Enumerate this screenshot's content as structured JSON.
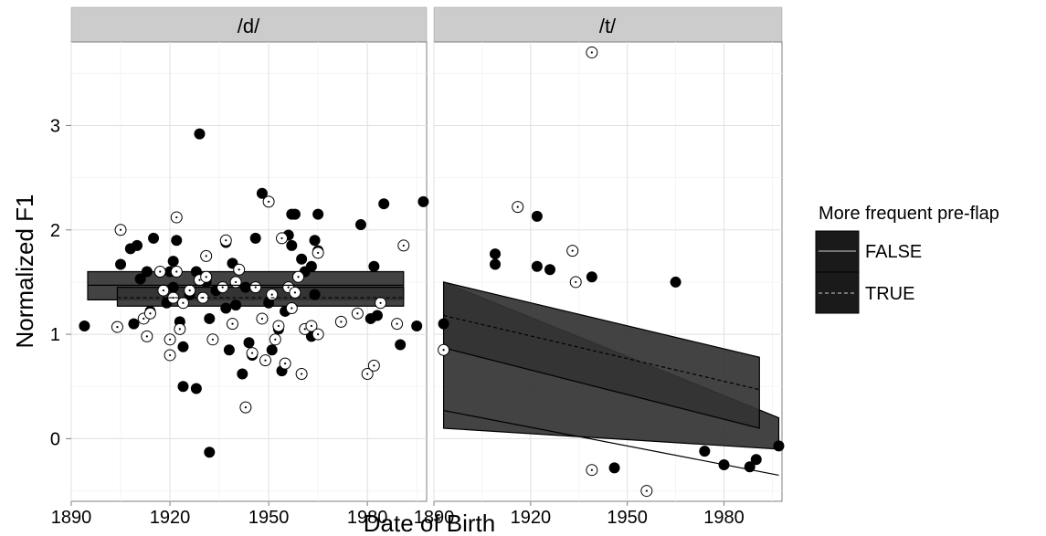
{
  "chart_data": {
    "type": "scatter",
    "facets": [
      "/d/",
      "/t/"
    ],
    "xlabel": "Date of Birth",
    "ylabel": "Normalized F1",
    "xlim": [
      1890,
      1998
    ],
    "ylim": [
      3.8,
      -0.6
    ],
    "y_reversed": true,
    "x_ticks": [
      1890,
      1920,
      1950,
      1980
    ],
    "y_ticks": [
      0,
      1,
      2,
      3
    ],
    "legend": {
      "title": "More frequent pre-flap",
      "placement": "right",
      "entries": [
        {
          "label": "FALSE",
          "line": "solid",
          "marker": "filled-circle"
        },
        {
          "label": "TRUE",
          "line": "dashed",
          "marker": "open-circle-dot"
        }
      ]
    },
    "panels": [
      {
        "facet": "/d/",
        "smooth": [
          {
            "group": "FALSE",
            "line": "solid",
            "x": [
              1895,
              1991
            ],
            "y": [
              1.47,
              1.47
            ],
            "ribbon_low": [
              1.33,
              1.33
            ],
            "ribbon_high": [
              1.6,
              1.6
            ]
          },
          {
            "group": "TRUE",
            "line": "dashed",
            "x": [
              1904,
              1991
            ],
            "y": [
              1.35,
              1.35
            ],
            "ribbon_low": [
              1.27,
              1.27
            ],
            "ribbon_high": [
              1.45,
              1.45
            ]
          }
        ],
        "points_false": [
          [
            1894,
            1.08
          ],
          [
            1905,
            1.67
          ],
          [
            1908,
            1.82
          ],
          [
            1909,
            1.1
          ],
          [
            1910,
            1.85
          ],
          [
            1911,
            1.53
          ],
          [
            1913,
            1.6
          ],
          [
            1914,
            1.22
          ],
          [
            1915,
            1.92
          ],
          [
            1919,
            1.3
          ],
          [
            1920,
            1.6
          ],
          [
            1921,
            1.45
          ],
          [
            1921,
            1.7
          ],
          [
            1922,
            1.9
          ],
          [
            1923,
            1.12
          ],
          [
            1924,
            0.5
          ],
          [
            1924,
            0.88
          ],
          [
            1926,
            1.38
          ],
          [
            1928,
            0.48
          ],
          [
            1928,
            1.6
          ],
          [
            1929,
            2.92
          ],
          [
            1930,
            1.35
          ],
          [
            1931,
            1.5
          ],
          [
            1932,
            -0.13
          ],
          [
            1932,
            1.15
          ],
          [
            1934,
            1.42
          ],
          [
            1937,
            1.25
          ],
          [
            1937,
            1.88
          ],
          [
            1938,
            0.85
          ],
          [
            1939,
            1.68
          ],
          [
            1940,
            1.28
          ],
          [
            1941,
            1.62
          ],
          [
            1942,
            0.62
          ],
          [
            1943,
            1.45
          ],
          [
            1944,
            0.92
          ],
          [
            1945,
            0.8
          ],
          [
            1946,
            1.92
          ],
          [
            1948,
            2.35
          ],
          [
            1950,
            1.3
          ],
          [
            1951,
            0.85
          ],
          [
            1952,
            0.95
          ],
          [
            1953,
            1.05
          ],
          [
            1954,
            0.65
          ],
          [
            1955,
            1.22
          ],
          [
            1956,
            1.95
          ],
          [
            1957,
            1.85
          ],
          [
            1957,
            2.15
          ],
          [
            1958,
            2.15
          ],
          [
            1960,
            1.72
          ],
          [
            1961,
            1.6
          ],
          [
            1963,
            0.98
          ],
          [
            1963,
            1.65
          ],
          [
            1964,
            1.9
          ],
          [
            1964,
            1.38
          ],
          [
            1965,
            1.8
          ],
          [
            1965,
            2.15
          ],
          [
            1978,
            2.05
          ],
          [
            1981,
            1.15
          ],
          [
            1982,
            1.65
          ],
          [
            1983,
            1.18
          ],
          [
            1985,
            2.25
          ],
          [
            1990,
            0.9
          ],
          [
            1995,
            1.08
          ],
          [
            1997,
            2.27
          ]
        ],
        "points_true": [
          [
            1904,
            1.07
          ],
          [
            1905,
            2.0
          ],
          [
            1912,
            1.15
          ],
          [
            1913,
            0.98
          ],
          [
            1914,
            1.2
          ],
          [
            1917,
            1.6
          ],
          [
            1918,
            1.42
          ],
          [
            1920,
            0.8
          ],
          [
            1920,
            0.95
          ],
          [
            1921,
            1.35
          ],
          [
            1922,
            2.12
          ],
          [
            1922,
            1.6
          ],
          [
            1923,
            1.05
          ],
          [
            1924,
            1.3
          ],
          [
            1926,
            1.42
          ],
          [
            1929,
            1.52
          ],
          [
            1930,
            1.35
          ],
          [
            1931,
            1.55
          ],
          [
            1931,
            1.75
          ],
          [
            1933,
            0.95
          ],
          [
            1936,
            1.45
          ],
          [
            1937,
            1.9
          ],
          [
            1939,
            1.1
          ],
          [
            1940,
            1.5
          ],
          [
            1941,
            1.62
          ],
          [
            1943,
            0.3
          ],
          [
            1945,
            0.82
          ],
          [
            1946,
            1.45
          ],
          [
            1948,
            1.15
          ],
          [
            1949,
            0.75
          ],
          [
            1950,
            2.27
          ],
          [
            1951,
            1.38
          ],
          [
            1952,
            0.95
          ],
          [
            1953,
            1.08
          ],
          [
            1954,
            1.92
          ],
          [
            1955,
            0.72
          ],
          [
            1956,
            1.45
          ],
          [
            1957,
            1.25
          ],
          [
            1958,
            1.4
          ],
          [
            1959,
            1.55
          ],
          [
            1960,
            0.62
          ],
          [
            1961,
            1.05
          ],
          [
            1963,
            1.08
          ],
          [
            1965,
            1.0
          ],
          [
            1965,
            1.78
          ],
          [
            1972,
            1.12
          ],
          [
            1977,
            1.2
          ],
          [
            1980,
            0.62
          ],
          [
            1982,
            0.7
          ],
          [
            1984,
            1.3
          ],
          [
            1989,
            1.1
          ],
          [
            1991,
            1.85
          ]
        ]
      },
      {
        "facet": "/t/",
        "smooth": [
          {
            "group": "FALSE",
            "line": "solid",
            "x": [
              1893,
              1997
            ],
            "y": [
              0.27,
              -0.35
            ],
            "ribbon_low": [
              0.1,
              -0.1
            ],
            "ribbon_high": [
              1.5,
              0.2
            ]
          },
          {
            "group": "TRUE",
            "line": "dashed",
            "x": [
              1893,
              1991
            ],
            "y": [
              1.18,
              0.47
            ],
            "ribbon_low": [
              0.87,
              0.1
            ],
            "ribbon_high": [
              1.5,
              0.78
            ]
          }
        ],
        "points_false": [
          [
            1893,
            1.1
          ],
          [
            1909,
            1.67
          ],
          [
            1909,
            1.77
          ],
          [
            1922,
            1.65
          ],
          [
            1922,
            2.13
          ],
          [
            1926,
            1.62
          ],
          [
            1939,
            1.55
          ],
          [
            1946,
            -0.28
          ],
          [
            1965,
            1.5
          ],
          [
            1974,
            -0.12
          ],
          [
            1980,
            -0.25
          ],
          [
            1988,
            -0.27
          ],
          [
            1990,
            -0.2
          ],
          [
            1997,
            -0.07
          ]
        ],
        "points_true": [
          [
            1893,
            0.85
          ],
          [
            1916,
            2.22
          ],
          [
            1933,
            1.8
          ],
          [
            1934,
            1.5
          ],
          [
            1939,
            -0.3
          ],
          [
            1939,
            3.7
          ],
          [
            1956,
            -0.5
          ]
        ]
      }
    ]
  }
}
